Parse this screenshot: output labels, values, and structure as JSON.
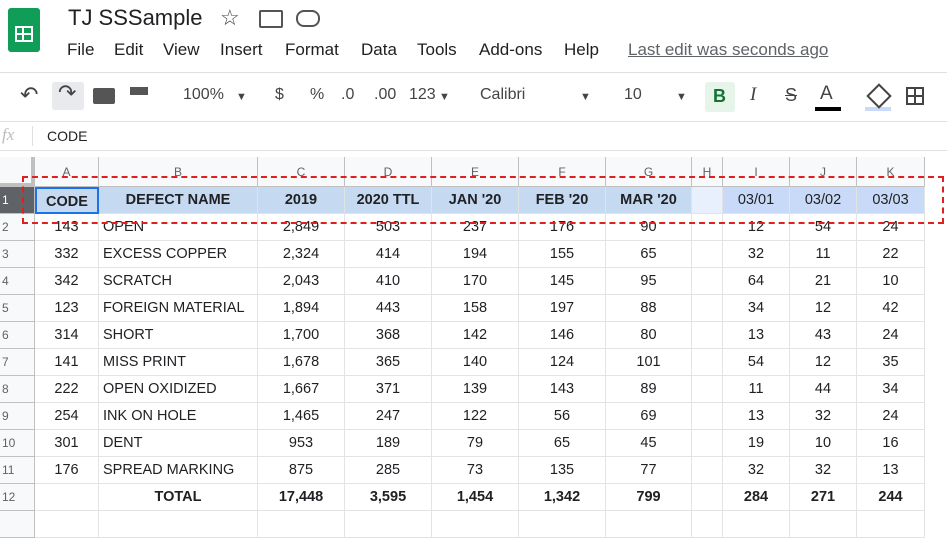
{
  "header": {
    "title": "TJ SSSample",
    "menu": [
      "File",
      "Edit",
      "View",
      "Insert",
      "Format",
      "Data",
      "Tools",
      "Add-ons",
      "Help"
    ],
    "last_edit": "Last edit was seconds ago"
  },
  "toolbar": {
    "zoom": "100%",
    "currency": "$",
    "percent": "%",
    "decrease_decimal": ".0",
    "increase_decimal": ".00",
    "number_format": "123",
    "font": "Calibri",
    "font_size": "10",
    "bold": "B",
    "italic": "I",
    "strikethrough": "S",
    "text_color": "A"
  },
  "formula_bar": {
    "label": "fx",
    "content": "CODE"
  },
  "sheet": {
    "columns": [
      "A",
      "B",
      "C",
      "D",
      "E",
      "F",
      "G",
      "H",
      "I",
      "J",
      "K"
    ],
    "row_numbers": [
      "1",
      "2",
      "3",
      "4",
      "5",
      "6",
      "7",
      "8",
      "9",
      "10",
      "11",
      "12"
    ],
    "rows": [
      [
        "CODE",
        "DEFECT NAME",
        "2019",
        "2020 TTL",
        "JAN '20",
        "FEB '20",
        "MAR '20",
        null,
        "03/01",
        "03/02",
        "03/03"
      ],
      [
        "143",
        "OPEN",
        "2,849",
        "503",
        "237",
        "176",
        "90",
        null,
        "12",
        "54",
        "24"
      ],
      [
        "332",
        "EXCESS COPPER",
        "2,324",
        "414",
        "194",
        "155",
        "65",
        null,
        "32",
        "11",
        "22"
      ],
      [
        "342",
        "SCRATCH",
        "2,043",
        "410",
        "170",
        "145",
        "95",
        null,
        "64",
        "21",
        "10"
      ],
      [
        "123",
        "FOREIGN MATERIAL",
        "1,894",
        "443",
        "158",
        "197",
        "88",
        null,
        "34",
        "12",
        "42"
      ],
      [
        "314",
        "SHORT",
        "1,700",
        "368",
        "142",
        "146",
        "80",
        null,
        "13",
        "43",
        "24"
      ],
      [
        "141",
        "MISS PRINT",
        "1,678",
        "365",
        "140",
        "124",
        "101",
        null,
        "54",
        "12",
        "35"
      ],
      [
        "222",
        "OPEN OXIDIZED",
        "1,667",
        "371",
        "139",
        "143",
        "89",
        null,
        "11",
        "44",
        "34"
      ],
      [
        "254",
        "INK ON HOLE",
        "1,465",
        "247",
        "122",
        "56",
        "69",
        null,
        "13",
        "32",
        "24"
      ],
      [
        "301",
        "DENT",
        "953",
        "189",
        "79",
        "65",
        "45",
        null,
        "19",
        "10",
        "16"
      ],
      [
        "176",
        "SPREAD MARKING",
        "875",
        "285",
        "73",
        "135",
        "77",
        null,
        "32",
        "32",
        "13"
      ],
      [
        null,
        "TOTAL",
        "17,448",
        "3,595",
        "1,454",
        "1,342",
        "799",
        null,
        "284",
        "271",
        "244"
      ]
    ]
  }
}
